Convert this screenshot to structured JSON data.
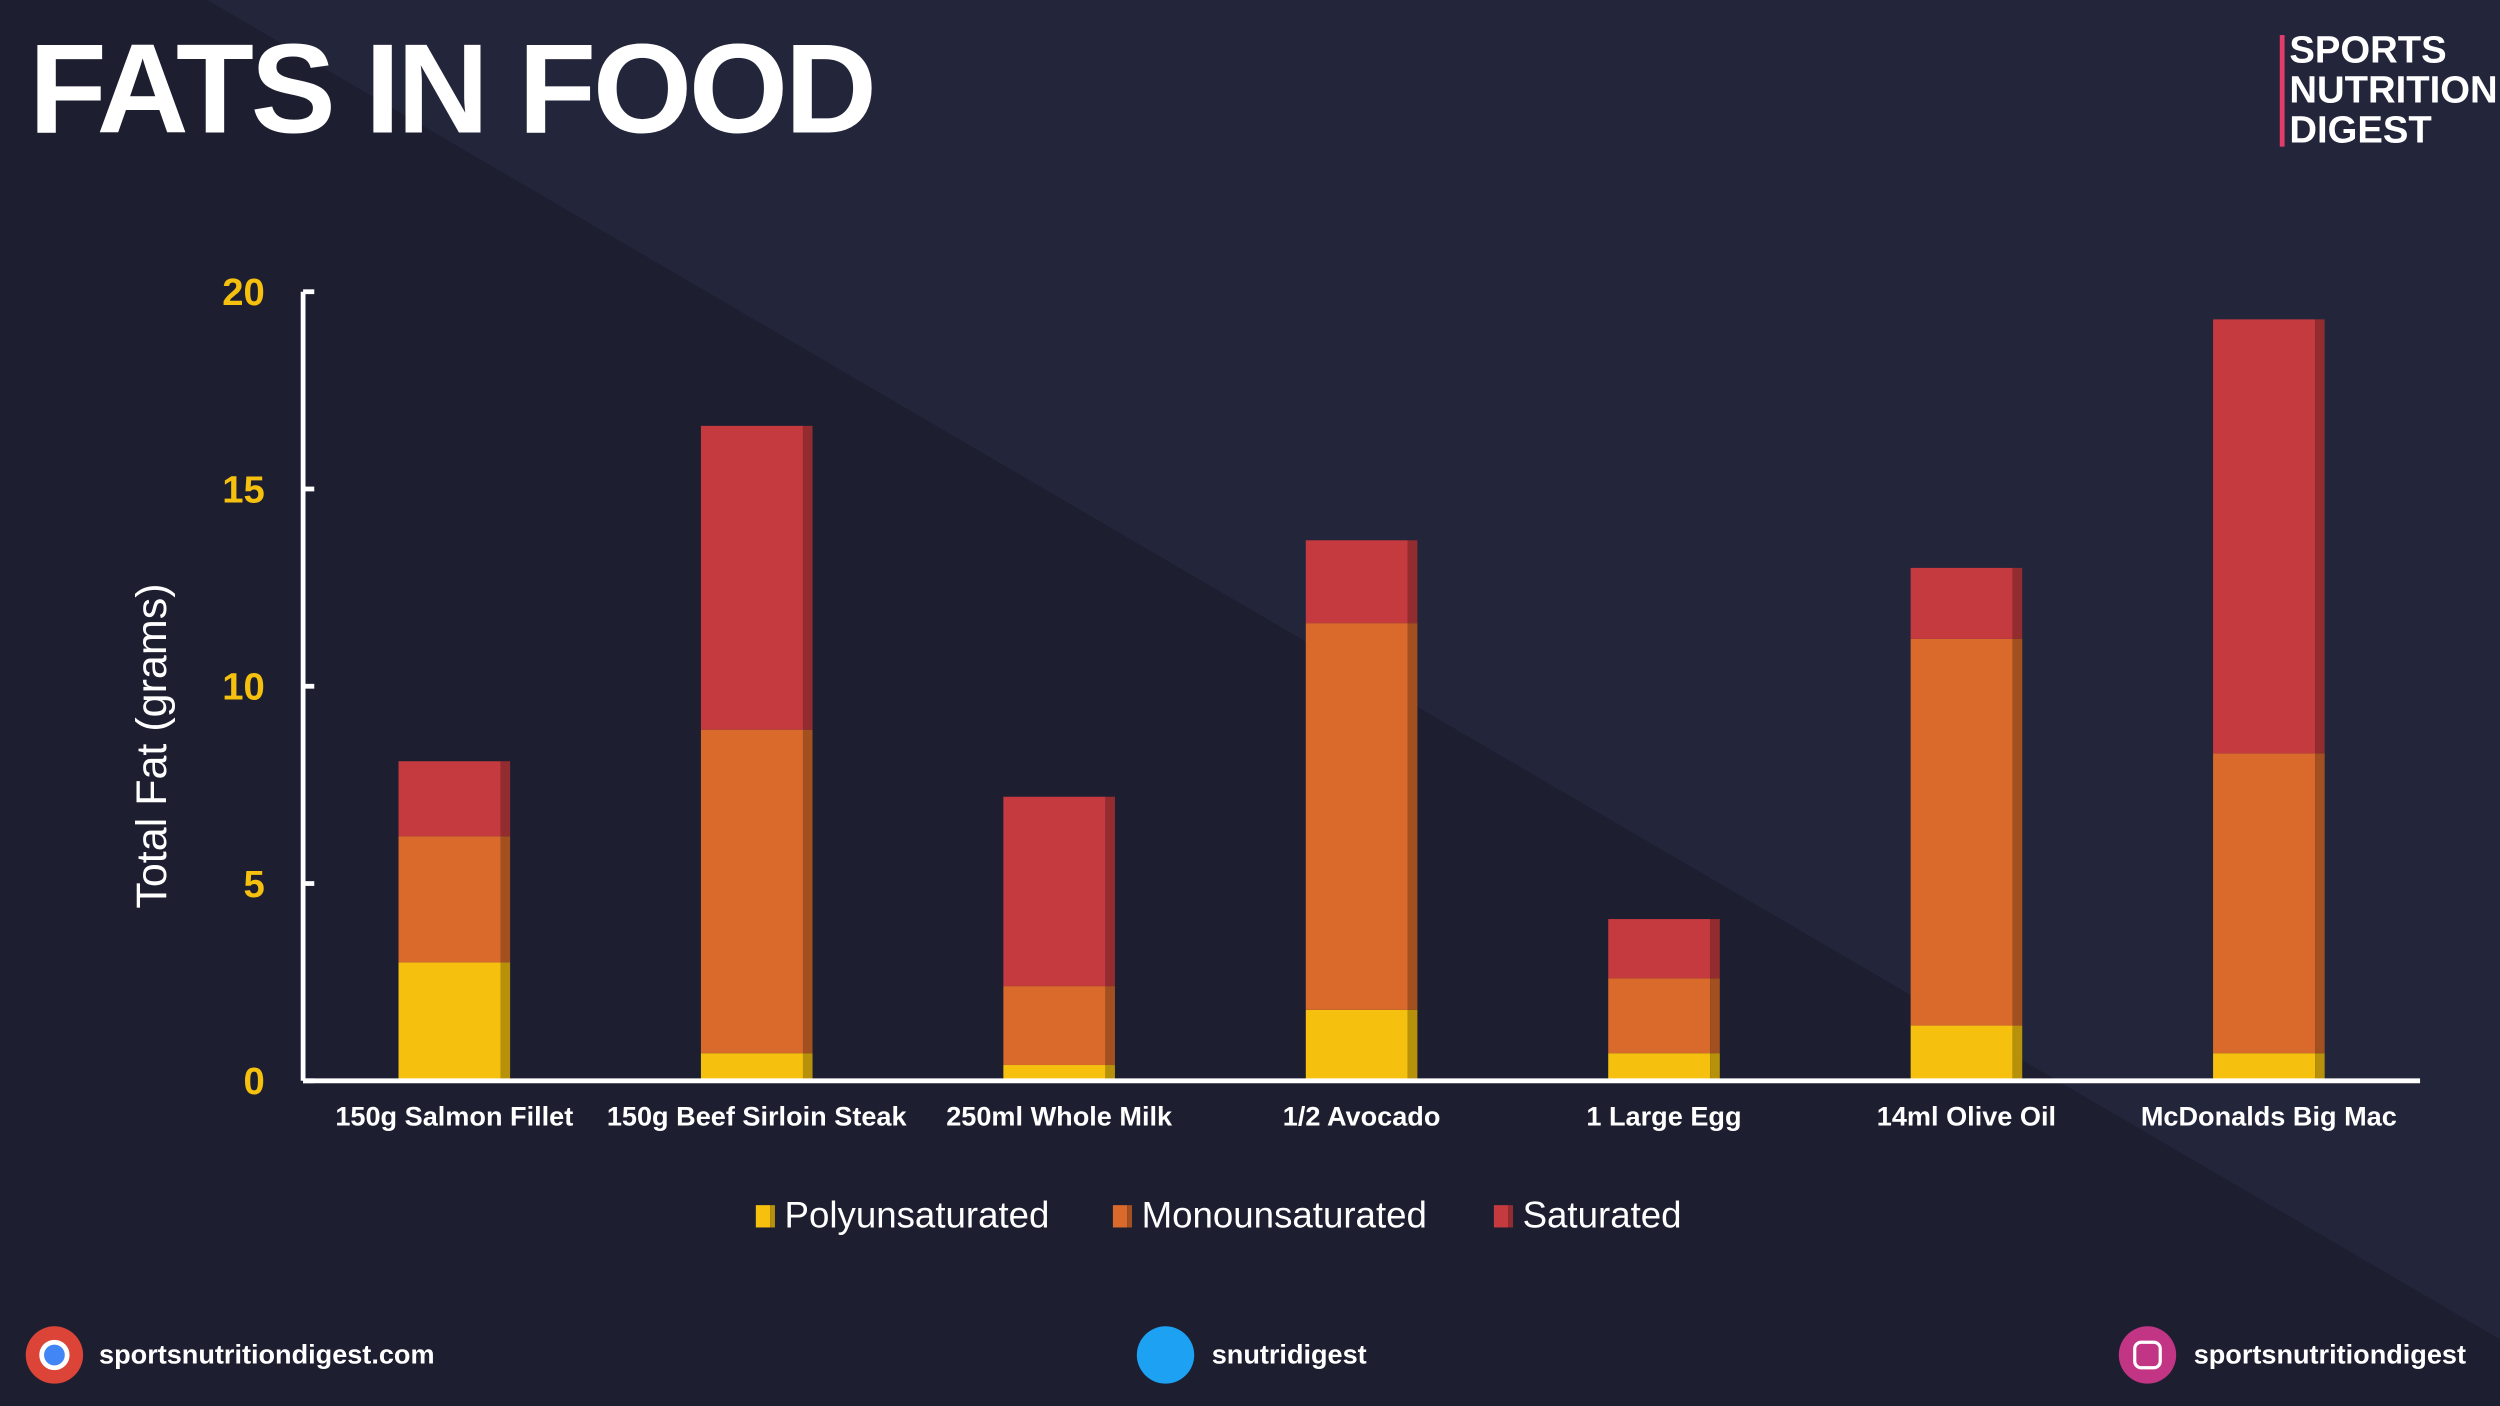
{
  "chart_data": {
    "type": "stacked_bar",
    "title": "FATS IN FOOD",
    "y_label": "Total Fat (grams)",
    "categories": [
      "150g Salmon Fillet",
      "150g Beef Sirloin Steak",
      "250ml Whole Milk",
      "1/2 Avocado",
      "1 Large Egg",
      "14ml Olive Oil",
      "McDonalds Big Mac"
    ],
    "series": [
      {
        "name": "Polyunsaturated",
        "color": "#f5c10e",
        "values": [
          3.0,
          0.7,
          0.4,
          1.8,
          0.7,
          1.4,
          0.7
        ]
      },
      {
        "name": "Monounsaturated",
        "color": "#d96a2b",
        "values": [
          3.2,
          8.2,
          2.0,
          9.8,
          1.9,
          9.8,
          7.6
        ]
      },
      {
        "name": "Saturated",
        "color": "#c43a3f",
        "values": [
          1.9,
          7.7,
          4.8,
          2.1,
          1.5,
          1.8,
          11.0
        ]
      }
    ],
    "ylim": [
      0,
      20
    ],
    "yticks": [
      0,
      5,
      10,
      15,
      20
    ],
    "legend": "bottom"
  },
  "brand": [
    "SPORTS",
    "NUTRITION",
    "DIGEST"
  ],
  "footer": {
    "website": "sportsnutritiondigest.com",
    "twitter": "snutridigest",
    "instagram": "sportsnutritiondigest"
  }
}
